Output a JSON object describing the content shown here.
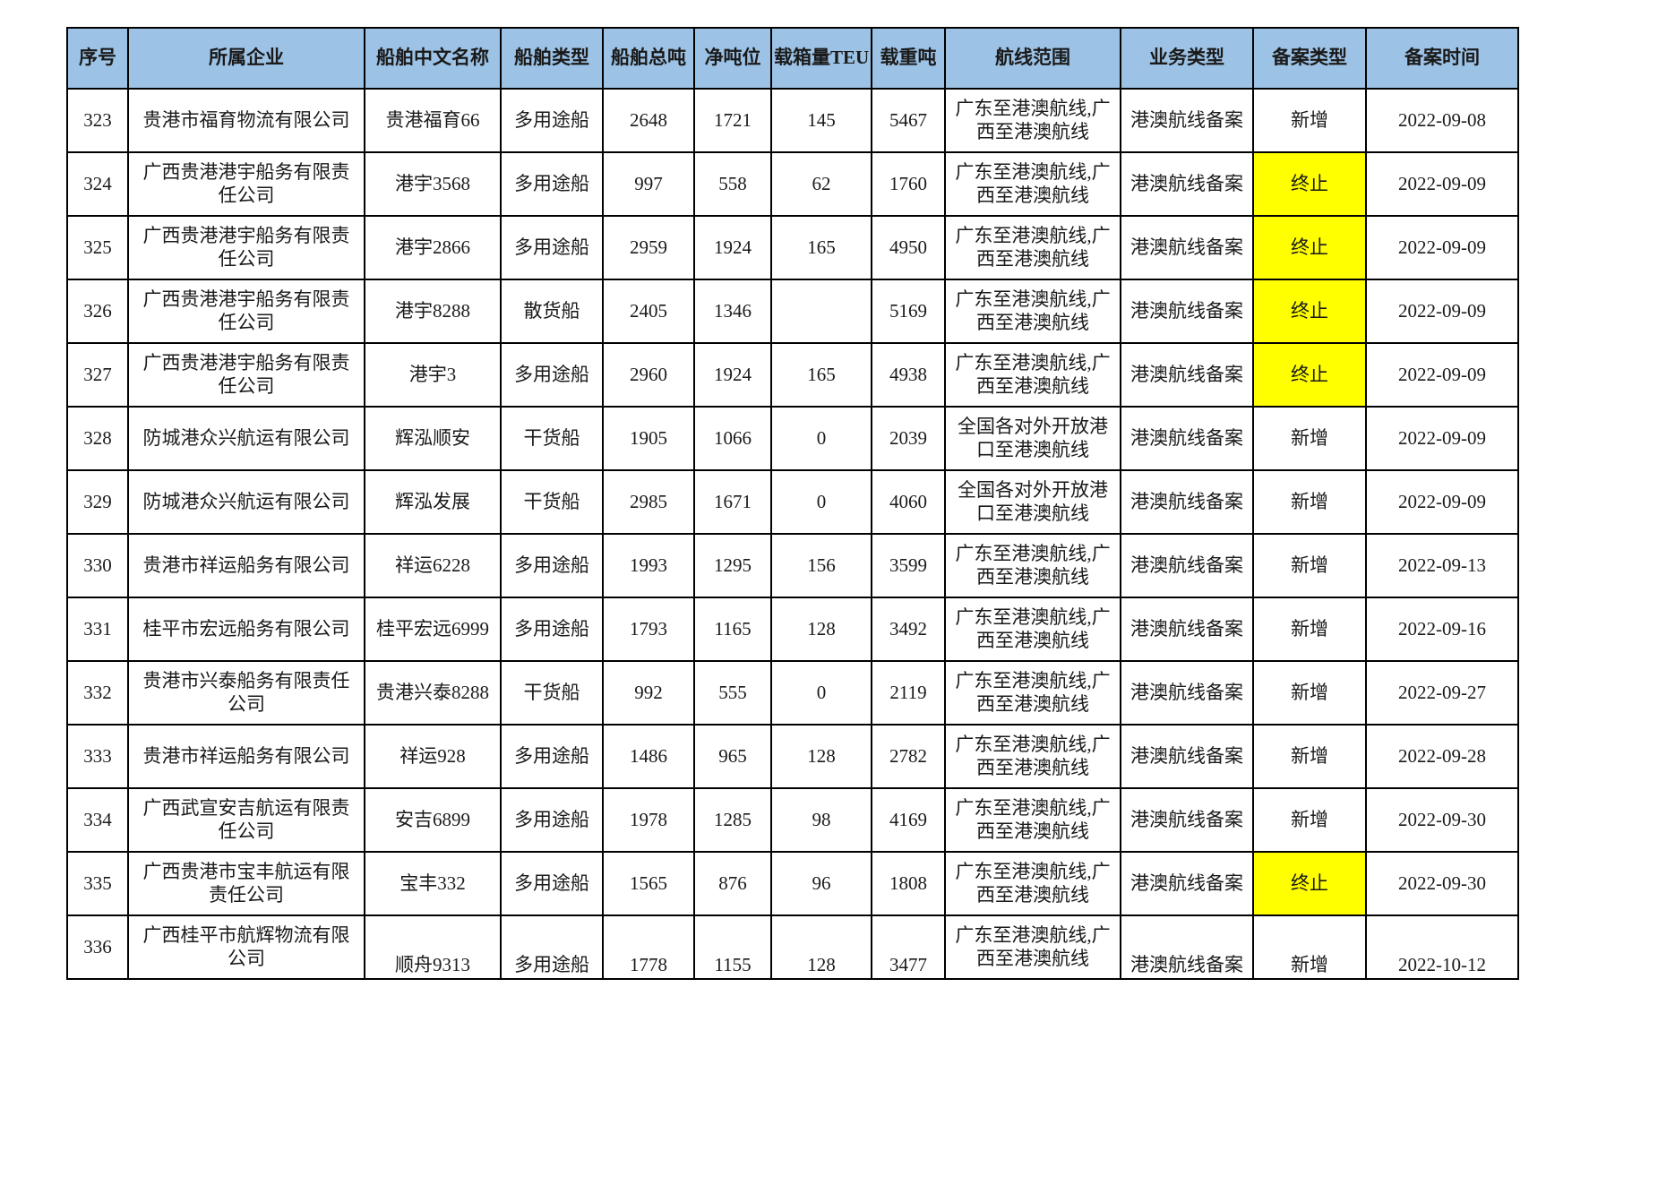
{
  "colors": {
    "header_bg": "#9CC2E5",
    "highlight": "#FFFF00",
    "border": "#000000",
    "page_bg": "#FFFFFF"
  },
  "table": {
    "columns": [
      {
        "key": "index",
        "label": "序号"
      },
      {
        "key": "company",
        "label": "所属企业"
      },
      {
        "key": "ship-name",
        "label": "船舶中文名称"
      },
      {
        "key": "ship-type",
        "label": "船舶类型"
      },
      {
        "key": "gross-tonnage",
        "label": "船舶总吨"
      },
      {
        "key": "net-tonnage",
        "label": "净吨位"
      },
      {
        "key": "teu",
        "label": "载箱量TEU"
      },
      {
        "key": "deadweight",
        "label": "载重吨"
      },
      {
        "key": "route",
        "label": "航线范围"
      },
      {
        "key": "business-type",
        "label": "业务类型"
      },
      {
        "key": "filing-type",
        "label": "备案类型"
      },
      {
        "key": "filing-date",
        "label": "备案时间"
      }
    ],
    "rows": [
      {
        "cells": [
          "323",
          "贵港市福育物流有限公司",
          "贵港福育66",
          "多用途船",
          "2648",
          "1721",
          "145",
          "5467",
          "广东至港澳航线,广西至港澳航线",
          "港澳航线备案",
          "新增",
          "2022-09-08"
        ],
        "filing_highlight": false,
        "bottom_align": false
      },
      {
        "cells": [
          "324",
          "广西贵港港宇船务有限责任公司",
          "港宇3568",
          "多用途船",
          "997",
          "558",
          "62",
          "1760",
          "广东至港澳航线,广西至港澳航线",
          "港澳航线备案",
          "终止",
          "2022-09-09"
        ],
        "filing_highlight": true,
        "bottom_align": false
      },
      {
        "cells": [
          "325",
          "广西贵港港宇船务有限责任公司",
          "港宇2866",
          "多用途船",
          "2959",
          "1924",
          "165",
          "4950",
          "广东至港澳航线,广西至港澳航线",
          "港澳航线备案",
          "终止",
          "2022-09-09"
        ],
        "filing_highlight": true,
        "bottom_align": false
      },
      {
        "cells": [
          "326",
          "广西贵港港宇船务有限责任公司",
          "港宇8288",
          "散货船",
          "2405",
          "1346",
          "",
          "5169",
          "广东至港澳航线,广西至港澳航线",
          "港澳航线备案",
          "终止",
          "2022-09-09"
        ],
        "filing_highlight": true,
        "bottom_align": false
      },
      {
        "cells": [
          "327",
          "广西贵港港宇船务有限责任公司",
          "港宇3",
          "多用途船",
          "2960",
          "1924",
          "165",
          "4938",
          "广东至港澳航线,广西至港澳航线",
          "港澳航线备案",
          "终止",
          "2022-09-09"
        ],
        "filing_highlight": true,
        "bottom_align": false
      },
      {
        "cells": [
          "328",
          "防城港众兴航运有限公司",
          "辉泓顺安",
          "干货船",
          "1905",
          "1066",
          "0",
          "2039",
          "全国各对外开放港口至港澳航线",
          "港澳航线备案",
          "新增",
          "2022-09-09"
        ],
        "filing_highlight": false,
        "bottom_align": false
      },
      {
        "cells": [
          "329",
          "防城港众兴航运有限公司",
          "辉泓发展",
          "干货船",
          "2985",
          "1671",
          "0",
          "4060",
          "全国各对外开放港口至港澳航线",
          "港澳航线备案",
          "新增",
          "2022-09-09"
        ],
        "filing_highlight": false,
        "bottom_align": false
      },
      {
        "cells": [
          "330",
          "贵港市祥运船务有限公司",
          "祥运6228",
          "多用途船",
          "1993",
          "1295",
          "156",
          "3599",
          "广东至港澳航线,广西至港澳航线",
          "港澳航线备案",
          "新增",
          "2022-09-13"
        ],
        "filing_highlight": false,
        "bottom_align": false
      },
      {
        "cells": [
          "331",
          "桂平市宏远船务有限公司",
          "桂平宏远6999",
          "多用途船",
          "1793",
          "1165",
          "128",
          "3492",
          "广东至港澳航线,广西至港澳航线",
          "港澳航线备案",
          "新增",
          "2022-09-16"
        ],
        "filing_highlight": false,
        "bottom_align": false
      },
      {
        "cells": [
          "332",
          "贵港市兴泰船务有限责任公司",
          "贵港兴泰8288",
          "干货船",
          "992",
          "555",
          "0",
          "2119",
          "广东至港澳航线,广西至港澳航线",
          "港澳航线备案",
          "新增",
          "2022-09-27"
        ],
        "filing_highlight": false,
        "bottom_align": false
      },
      {
        "cells": [
          "333",
          "贵港市祥运船务有限公司",
          "祥运928",
          "多用途船",
          "1486",
          "965",
          "128",
          "2782",
          "广东至港澳航线,广西至港澳航线",
          "港澳航线备案",
          "新增",
          "2022-09-28"
        ],
        "filing_highlight": false,
        "bottom_align": false
      },
      {
        "cells": [
          "334",
          "广西武宣安吉航运有限责任公司",
          "安吉6899",
          "多用途船",
          "1978",
          "1285",
          "98",
          "4169",
          "广东至港澳航线,广西至港澳航线",
          "港澳航线备案",
          "新增",
          "2022-09-30"
        ],
        "filing_highlight": false,
        "bottom_align": false
      },
      {
        "cells": [
          "335",
          "广西贵港市宝丰航运有限责任公司",
          "宝丰332",
          "多用途船",
          "1565",
          "876",
          "96",
          "1808",
          "广东至港澳航线,广西至港澳航线",
          "港澳航线备案",
          "终止",
          "2022-09-30"
        ],
        "filing_highlight": true,
        "bottom_align": false
      },
      {
        "cells": [
          "336",
          "广西桂平市航辉物流有限公司",
          "顺舟9313",
          "多用途船",
          "1778",
          "1155",
          "128",
          "3477",
          "广东至港澳航线,广西至港澳航线",
          "港澳航线备案",
          "新增",
          "2022-10-12"
        ],
        "filing_highlight": false,
        "bottom_align": true
      }
    ]
  }
}
